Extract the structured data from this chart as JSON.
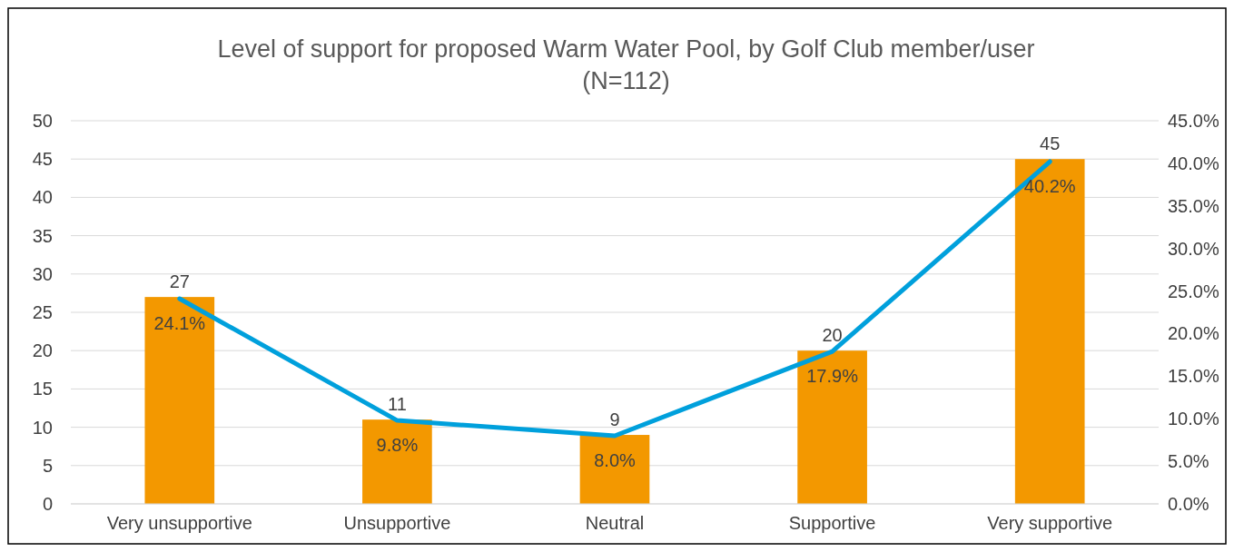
{
  "chart_data": {
    "type": "bar",
    "title": "Level of support for proposed Warm Water Pool, by Golf Club member/user (N=112)",
    "categories": [
      "Very unsupportive",
      "Unsupportive",
      "Neutral",
      "Supportive",
      "Very supportive"
    ],
    "series": [
      {
        "color": "#f39800",
        "values": [
          27,
          11,
          9,
          20,
          45
        ],
        "value_labels": [
          "27",
          "11",
          "9",
          "20",
          "45"
        ]
      },
      {
        "type": "line",
        "axis": "y2",
        "color": "#00a0dc",
        "values": [
          24.1,
          9.8,
          8.0,
          17.9,
          40.2
        ],
        "value_labels": [
          "24.1%",
          "9.8%",
          "8.0%",
          "17.9%",
          "40.2%"
        ]
      }
    ],
    "ylim": [
      0,
      50
    ],
    "yticks": [
      0,
      5,
      10,
      15,
      20,
      25,
      30,
      35,
      40,
      45,
      50
    ],
    "y2lim": [
      0,
      45
    ],
    "y2ticks": [
      {
        "value": 0,
        "label": "0.0%"
      },
      {
        "value": 5,
        "label": "5.0%"
      },
      {
        "value": 10,
        "label": "10.0%"
      },
      {
        "value": 15,
        "label": "15.0%"
      },
      {
        "value": 20,
        "label": "20.0%"
      },
      {
        "value": 25,
        "label": "25.0%"
      },
      {
        "value": 30,
        "label": "30.0%"
      },
      {
        "value": 35,
        "label": "35.0%"
      },
      {
        "value": 40,
        "label": "40.0%"
      },
      {
        "value": 45,
        "label": "45.0%"
      }
    ],
    "grid": "y",
    "marker": "none",
    "line_style": "solid"
  }
}
